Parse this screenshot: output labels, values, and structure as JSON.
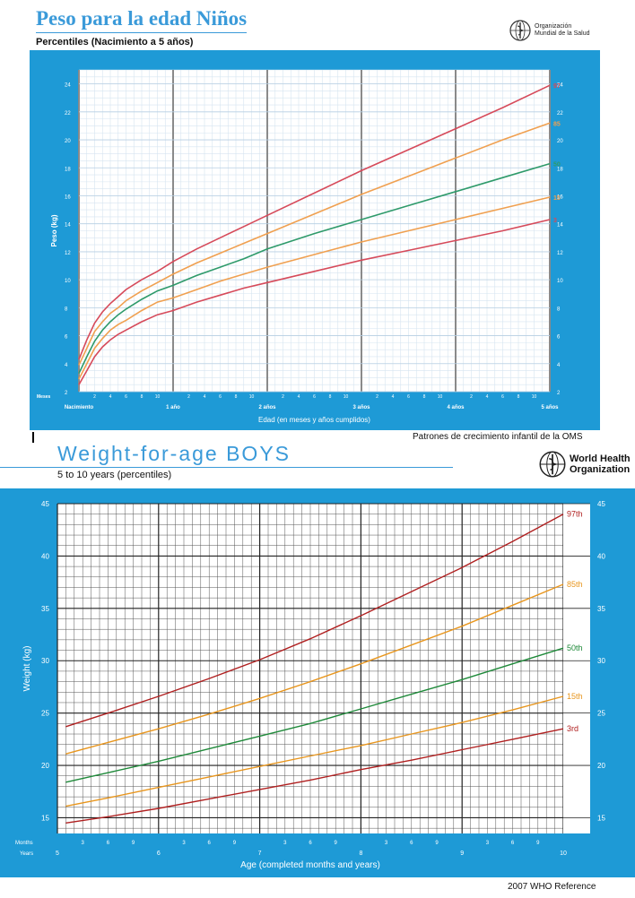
{
  "top": {
    "title": "Peso para la edad Niños",
    "subtitle": "Percentiles (Nacimiento a 5 años)",
    "logo_text": [
      "Organización",
      "Mundial de la Salud"
    ],
    "source": "Patrones de crecimiento infantil de la OMS"
  },
  "bottom": {
    "title": "Weight-for-age  BOYS",
    "subtitle": "5 to 10 years (percentiles)",
    "logo_text": [
      "World Health",
      "Organization"
    ],
    "source": "2007 WHO Reference"
  },
  "colors": {
    "frame": "#1e9ad6",
    "grid_top": "#d6e4f0",
    "red": "#b02020",
    "orange": "#e8961e",
    "green": "#1f8a3a",
    "top_red": "#d64a5a",
    "top_orange": "#f0a050",
    "top_green": "#2e9a6a"
  },
  "chart_data": [
    {
      "type": "line",
      "ylabel": "Peso (kg)",
      "xlabel": "Edad (en meses y años cumplidos)",
      "x_unit": "months",
      "xlim": [
        0,
        60
      ],
      "ylim": [
        2,
        25
      ],
      "yticks": [
        2,
        4,
        6,
        8,
        10,
        12,
        14,
        16,
        18,
        20,
        22,
        24
      ],
      "row_label": "Meses",
      "x_major_labels": [
        {
          "x": 0,
          "label": "Nacimiento"
        },
        {
          "x": 12,
          "label": "1 año"
        },
        {
          "x": 24,
          "label": "2 años"
        },
        {
          "x": 36,
          "label": "3 años"
        },
        {
          "x": 48,
          "label": "4 años"
        },
        {
          "x": 60,
          "label": "5 años"
        }
      ],
      "x_minor_labels": [
        2,
        4,
        6,
        8,
        10
      ],
      "x": [
        0,
        1,
        2,
        3,
        4,
        5,
        6,
        8,
        10,
        12,
        15,
        18,
        21,
        24,
        30,
        36,
        42,
        48,
        54,
        60
      ],
      "series": [
        {
          "name": "97",
          "color_key": "top_red",
          "values": [
            4.3,
            5.7,
            6.9,
            7.7,
            8.3,
            8.8,
            9.3,
            10.0,
            10.6,
            11.3,
            12.2,
            13.0,
            13.8,
            14.6,
            16.2,
            17.8,
            19.3,
            20.8,
            22.3,
            23.9
          ]
        },
        {
          "name": "85",
          "color_key": "top_orange",
          "values": [
            3.9,
            5.1,
            6.3,
            7.0,
            7.6,
            8.0,
            8.5,
            9.2,
            9.8,
            10.4,
            11.2,
            11.9,
            12.6,
            13.3,
            14.7,
            16.1,
            17.4,
            18.7,
            20.0,
            21.2
          ]
        },
        {
          "name": "50",
          "color_key": "top_green",
          "values": [
            3.3,
            4.5,
            5.6,
            6.4,
            7.0,
            7.5,
            7.9,
            8.6,
            9.2,
            9.6,
            10.3,
            10.9,
            11.5,
            12.2,
            13.3,
            14.3,
            15.3,
            16.3,
            17.3,
            18.3
          ]
        },
        {
          "name": "15",
          "color_key": "top_orange",
          "values": [
            2.9,
            4.0,
            5.1,
            5.8,
            6.4,
            6.8,
            7.1,
            7.8,
            8.4,
            8.7,
            9.3,
            9.9,
            10.4,
            10.9,
            11.8,
            12.7,
            13.5,
            14.3,
            15.1,
            15.9
          ]
        },
        {
          "name": "3",
          "color_key": "top_red",
          "values": [
            2.5,
            3.5,
            4.5,
            5.2,
            5.7,
            6.1,
            6.4,
            7.0,
            7.5,
            7.8,
            8.4,
            8.9,
            9.4,
            9.8,
            10.6,
            11.4,
            12.1,
            12.8,
            13.5,
            14.3
          ]
        }
      ]
    },
    {
      "type": "line",
      "ylabel": "Weight (kg)",
      "xlabel": "Age (completed months and years)",
      "x_unit": "years",
      "xlim": [
        5,
        10
      ],
      "ylim": [
        13.5,
        45
      ],
      "yticks": [
        15,
        20,
        25,
        30,
        35,
        40,
        45
      ],
      "months_row_label": "Months",
      "years_row_label": "Years",
      "month_ticks": [
        3,
        6,
        9
      ],
      "year_labels": [
        5,
        6,
        7,
        8,
        9,
        10
      ],
      "x": [
        5.083,
        5.5,
        6,
        6.5,
        7,
        7.5,
        8,
        8.5,
        9,
        9.5,
        10
      ],
      "series": [
        {
          "name": "97th",
          "color_key": "red",
          "values": [
            23.7,
            25.0,
            26.6,
            28.3,
            30.1,
            32.1,
            34.3,
            36.6,
            38.9,
            41.4,
            44.0
          ]
        },
        {
          "name": "85th",
          "color_key": "orange",
          "values": [
            21.1,
            22.2,
            23.5,
            24.9,
            26.4,
            28.0,
            29.7,
            31.5,
            33.3,
            35.3,
            37.3
          ]
        },
        {
          "name": "50th",
          "color_key": "green",
          "values": [
            18.4,
            19.3,
            20.4,
            21.6,
            22.8,
            24.0,
            25.4,
            26.8,
            28.2,
            29.7,
            31.2
          ]
        },
        {
          "name": "15th",
          "color_key": "orange",
          "values": [
            16.1,
            16.9,
            17.9,
            18.9,
            19.9,
            20.9,
            21.9,
            23.0,
            24.1,
            25.3,
            26.6
          ]
        },
        {
          "name": "3rd",
          "color_key": "red",
          "values": [
            14.5,
            15.1,
            15.9,
            16.8,
            17.7,
            18.6,
            19.6,
            20.5,
            21.5,
            22.5,
            23.5
          ]
        }
      ]
    }
  ]
}
